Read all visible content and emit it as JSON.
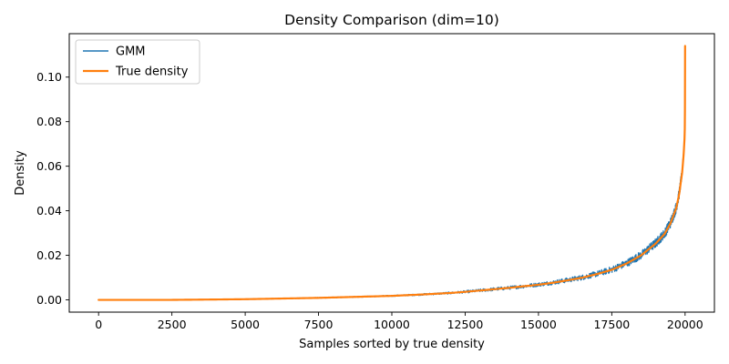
{
  "chart_data": {
    "type": "line",
    "title": "Density Comparison (dim=10)",
    "xlabel": "Samples sorted by true density",
    "ylabel": "Density",
    "xlim": [
      -1000,
      21000
    ],
    "ylim": [
      -0.0055,
      0.1195
    ],
    "xticks": [
      0,
      2500,
      5000,
      7500,
      10000,
      12500,
      15000,
      17500,
      20000
    ],
    "xtick_labels": [
      "0",
      "2500",
      "5000",
      "7500",
      "10000",
      "12500",
      "15000",
      "17500",
      "20000"
    ],
    "yticks": [
      0.0,
      0.02,
      0.04,
      0.06,
      0.08,
      0.1
    ],
    "ytick_labels": [
      "0.00",
      "0.02",
      "0.04",
      "0.06",
      "0.08",
      "0.10"
    ],
    "grid": false,
    "legend_position": "top-left",
    "series": [
      {
        "name": "GMM",
        "color": "#1f77b4",
        "x": [
          0,
          2500,
          5000,
          7500,
          10000,
          11000,
          12000,
          12500,
          13000,
          14000,
          15000,
          15500,
          16000,
          16500,
          17000,
          17500,
          18000,
          18500,
          19000,
          19300,
          19500,
          19700,
          19800,
          19900,
          19950,
          19980,
          19990,
          20000
        ],
        "y": [
          0.0,
          0.0,
          0.0003,
          0.0009,
          0.0018,
          0.0024,
          0.0031,
          0.0036,
          0.0042,
          0.0054,
          0.0069,
          0.0078,
          0.0089,
          0.0101,
          0.0117,
          0.0136,
          0.0164,
          0.0201,
          0.0255,
          0.0298,
          0.0345,
          0.0415,
          0.0478,
          0.0575,
          0.0655,
          0.0725,
          0.0772,
          0.0865
        ],
        "noise_amplitude": [
          0.0,
          0.0,
          0.0001,
          0.0002,
          0.0003,
          0.0004,
          0.0005,
          0.0006,
          0.0007,
          0.0008,
          0.0009,
          0.001,
          0.0011,
          0.0012,
          0.0013,
          0.0015,
          0.0017,
          0.0019,
          0.0021,
          0.0022,
          0.0023,
          0.0024,
          0.0024,
          0.0022,
          0.0016,
          0.0008,
          0.0003,
          0.0
        ]
      },
      {
        "name": "True density",
        "color": "#ff7f0e",
        "x": [
          0,
          2500,
          5000,
          7500,
          10000,
          11000,
          12000,
          12500,
          13000,
          14000,
          15000,
          15500,
          16000,
          16500,
          17000,
          17500,
          18000,
          18500,
          19000,
          19300,
          19500,
          19700,
          19800,
          19900,
          19950,
          19980,
          19990,
          19995,
          20000
        ],
        "y": [
          0.0,
          0.0,
          0.0003,
          0.0009,
          0.0018,
          0.0024,
          0.0031,
          0.0036,
          0.0042,
          0.0054,
          0.0068,
          0.0077,
          0.0088,
          0.01,
          0.0116,
          0.0135,
          0.0163,
          0.02,
          0.0253,
          0.0296,
          0.0343,
          0.0413,
          0.0476,
          0.0572,
          0.0652,
          0.0722,
          0.077,
          0.086,
          0.114
        ]
      }
    ]
  }
}
